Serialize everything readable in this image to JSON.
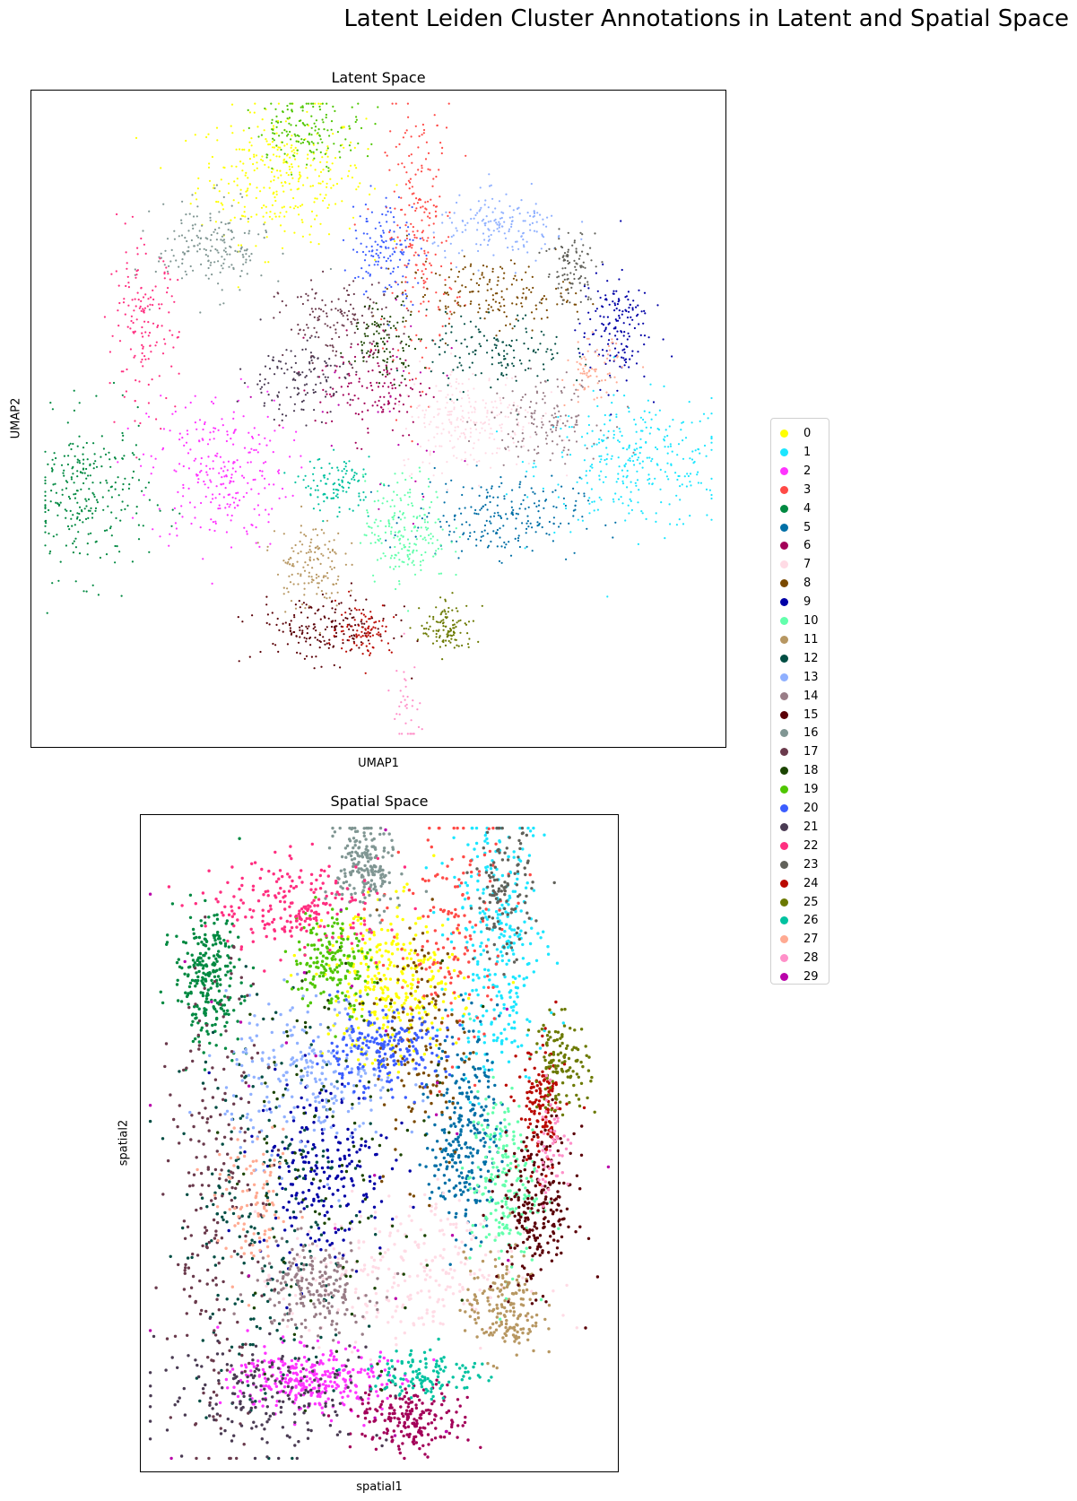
{
  "suptitle": "Latent Leiden Cluster Annotations in Latent and Spatial Space",
  "legend": {
    "items": [
      {
        "label": "0",
        "color": "#ffff00"
      },
      {
        "label": "1",
        "color": "#1ce6ff"
      },
      {
        "label": "2",
        "color": "#ff34ff"
      },
      {
        "label": "3",
        "color": "#ff4a46"
      },
      {
        "label": "4",
        "color": "#008941"
      },
      {
        "label": "5",
        "color": "#006fa6"
      },
      {
        "label": "6",
        "color": "#a30059"
      },
      {
        "label": "7",
        "color": "#ffdbe5"
      },
      {
        "label": "8",
        "color": "#7a4900"
      },
      {
        "label": "9",
        "color": "#0000a6"
      },
      {
        "label": "10",
        "color": "#63ffac"
      },
      {
        "label": "11",
        "color": "#b79762"
      },
      {
        "label": "12",
        "color": "#004d43"
      },
      {
        "label": "13",
        "color": "#8fb0ff"
      },
      {
        "label": "14",
        "color": "#997d87"
      },
      {
        "label": "15",
        "color": "#5a0007"
      },
      {
        "label": "16",
        "color": "#809693"
      },
      {
        "label": "17",
        "color": "#6a3a4c"
      },
      {
        "label": "18",
        "color": "#1b4400"
      },
      {
        "label": "19",
        "color": "#4fc601"
      },
      {
        "label": "20",
        "color": "#3b5dff"
      },
      {
        "label": "21",
        "color": "#4a3b53"
      },
      {
        "label": "22",
        "color": "#ff2f80"
      },
      {
        "label": "23",
        "color": "#61615a"
      },
      {
        "label": "24",
        "color": "#ba0900"
      },
      {
        "label": "25",
        "color": "#6b7900"
      },
      {
        "label": "26",
        "color": "#00c2a0"
      },
      {
        "label": "27",
        "color": "#ffaa92"
      },
      {
        "label": "28",
        "color": "#ff90c9"
      },
      {
        "label": "29",
        "color": "#b903aa"
      }
    ]
  },
  "chart_data": [
    {
      "type": "scatter",
      "title": "Latent Space",
      "xlabel": "UMAP1",
      "ylabel": "UMAP2",
      "ticks": "none",
      "legend": "right",
      "colored_by": "cluster",
      "cluster_centers": [
        {
          "cluster": "0",
          "x": 0.36,
          "y": 0.87,
          "sx": 0.06,
          "sy": 0.05,
          "n": 320
        },
        {
          "cluster": "1",
          "x": 0.87,
          "y": 0.43,
          "sx": 0.07,
          "sy": 0.05,
          "n": 300
        },
        {
          "cluster": "2",
          "x": 0.27,
          "y": 0.42,
          "sx": 0.05,
          "sy": 0.06,
          "n": 260
        },
        {
          "cluster": "3",
          "x": 0.56,
          "y": 0.78,
          "sx": 0.025,
          "sy": 0.1,
          "n": 220
        },
        {
          "cluster": "4",
          "x": 0.08,
          "y": 0.38,
          "sx": 0.045,
          "sy": 0.06,
          "n": 260
        },
        {
          "cluster": "5",
          "x": 0.67,
          "y": 0.35,
          "sx": 0.06,
          "sy": 0.03,
          "n": 220
        },
        {
          "cluster": "6",
          "x": 0.49,
          "y": 0.55,
          "sx": 0.04,
          "sy": 0.04,
          "n": 140
        },
        {
          "cluster": "7",
          "x": 0.63,
          "y": 0.5,
          "sx": 0.05,
          "sy": 0.04,
          "n": 240
        },
        {
          "cluster": "8",
          "x": 0.66,
          "y": 0.69,
          "sx": 0.06,
          "sy": 0.025,
          "n": 170
        },
        {
          "cluster": "9",
          "x": 0.84,
          "y": 0.64,
          "sx": 0.025,
          "sy": 0.045,
          "n": 160
        },
        {
          "cluster": "10",
          "x": 0.54,
          "y": 0.33,
          "sx": 0.03,
          "sy": 0.04,
          "n": 200
        },
        {
          "cluster": "11",
          "x": 0.4,
          "y": 0.28,
          "sx": 0.025,
          "sy": 0.035,
          "n": 140
        },
        {
          "cluster": "12",
          "x": 0.67,
          "y": 0.6,
          "sx": 0.05,
          "sy": 0.03,
          "n": 140
        },
        {
          "cluster": "13",
          "x": 0.68,
          "y": 0.79,
          "sx": 0.05,
          "sy": 0.025,
          "n": 160
        },
        {
          "cluster": "14",
          "x": 0.74,
          "y": 0.5,
          "sx": 0.04,
          "sy": 0.03,
          "n": 150
        },
        {
          "cluster": "15",
          "x": 0.42,
          "y": 0.18,
          "sx": 0.05,
          "sy": 0.025,
          "n": 180
        },
        {
          "cluster": "16",
          "x": 0.26,
          "y": 0.76,
          "sx": 0.04,
          "sy": 0.035,
          "n": 180
        },
        {
          "cluster": "17",
          "x": 0.44,
          "y": 0.65,
          "sx": 0.04,
          "sy": 0.03,
          "n": 140
        },
        {
          "cluster": "18",
          "x": 0.51,
          "y": 0.62,
          "sx": 0.025,
          "sy": 0.03,
          "n": 110
        },
        {
          "cluster": "19",
          "x": 0.4,
          "y": 0.94,
          "sx": 0.04,
          "sy": 0.025,
          "n": 150
        },
        {
          "cluster": "20",
          "x": 0.51,
          "y": 0.76,
          "sx": 0.025,
          "sy": 0.04,
          "n": 140
        },
        {
          "cluster": "21",
          "x": 0.38,
          "y": 0.56,
          "sx": 0.04,
          "sy": 0.03,
          "n": 130
        },
        {
          "cluster": "22",
          "x": 0.16,
          "y": 0.64,
          "sx": 0.025,
          "sy": 0.06,
          "n": 150
        },
        {
          "cluster": "23",
          "x": 0.78,
          "y": 0.73,
          "sx": 0.02,
          "sy": 0.03,
          "n": 100
        },
        {
          "cluster": "24",
          "x": 0.48,
          "y": 0.18,
          "sx": 0.02,
          "sy": 0.02,
          "n": 90
        },
        {
          "cluster": "25",
          "x": 0.6,
          "y": 0.18,
          "sx": 0.02,
          "sy": 0.02,
          "n": 110
        },
        {
          "cluster": "26",
          "x": 0.44,
          "y": 0.4,
          "sx": 0.025,
          "sy": 0.02,
          "n": 110
        },
        {
          "cluster": "27",
          "x": 0.81,
          "y": 0.57,
          "sx": 0.02,
          "sy": 0.025,
          "n": 70
        },
        {
          "cluster": "28",
          "x": 0.54,
          "y": 0.06,
          "sx": 0.01,
          "sy": 0.04,
          "n": 35
        },
        {
          "cluster": "29",
          "x": 0.52,
          "y": 0.5,
          "sx": 0.08,
          "sy": 0.08,
          "n": 25
        }
      ]
    },
    {
      "type": "scatter",
      "title": "Spatial Space",
      "xlabel": "spatial1",
      "ylabel": "spatial2",
      "ticks": "none",
      "colored_by": "cluster",
      "cluster_centers": [
        {
          "cluster": "0",
          "x": 0.53,
          "y": 0.74,
          "sx": 0.07,
          "sy": 0.06,
          "n": 330
        },
        {
          "cluster": "1",
          "x": 0.75,
          "y": 0.8,
          "sx": 0.05,
          "sy": 0.1,
          "n": 300
        },
        {
          "cluster": "2",
          "x": 0.35,
          "y": 0.14,
          "sx": 0.08,
          "sy": 0.025,
          "n": 300
        },
        {
          "cluster": "3",
          "x": 0.65,
          "y": 0.82,
          "sx": 0.06,
          "sy": 0.1,
          "n": 150
        },
        {
          "cluster": "4",
          "x": 0.14,
          "y": 0.75,
          "sx": 0.035,
          "sy": 0.05,
          "n": 260
        },
        {
          "cluster": "5",
          "x": 0.68,
          "y": 0.52,
          "sx": 0.035,
          "sy": 0.08,
          "n": 280
        },
        {
          "cluster": "6",
          "x": 0.57,
          "y": 0.08,
          "sx": 0.06,
          "sy": 0.025,
          "n": 200
        },
        {
          "cluster": "7",
          "x": 0.55,
          "y": 0.3,
          "sx": 0.12,
          "sy": 0.06,
          "n": 260
        },
        {
          "cluster": "8",
          "x": 0.59,
          "y": 0.66,
          "sx": 0.05,
          "sy": 0.1,
          "n": 140
        },
        {
          "cluster": "9",
          "x": 0.38,
          "y": 0.46,
          "sx": 0.07,
          "sy": 0.07,
          "n": 220
        },
        {
          "cluster": "10",
          "x": 0.76,
          "y": 0.44,
          "sx": 0.035,
          "sy": 0.07,
          "n": 200
        },
        {
          "cluster": "11",
          "x": 0.76,
          "y": 0.25,
          "sx": 0.04,
          "sy": 0.04,
          "n": 180
        },
        {
          "cluster": "12",
          "x": 0.26,
          "y": 0.4,
          "sx": 0.09,
          "sy": 0.15,
          "n": 220
        },
        {
          "cluster": "13",
          "x": 0.36,
          "y": 0.6,
          "sx": 0.09,
          "sy": 0.06,
          "n": 240
        },
        {
          "cluster": "14",
          "x": 0.36,
          "y": 0.28,
          "sx": 0.06,
          "sy": 0.035,
          "n": 200
        },
        {
          "cluster": "15",
          "x": 0.83,
          "y": 0.4,
          "sx": 0.04,
          "sy": 0.06,
          "n": 240
        },
        {
          "cluster": "16",
          "x": 0.47,
          "y": 0.92,
          "sx": 0.03,
          "sy": 0.04,
          "n": 200
        },
        {
          "cluster": "17",
          "x": 0.16,
          "y": 0.4,
          "sx": 0.05,
          "sy": 0.18,
          "n": 220
        },
        {
          "cluster": "18",
          "x": 0.42,
          "y": 0.5,
          "sx": 0.12,
          "sy": 0.15,
          "n": 120
        },
        {
          "cluster": "19",
          "x": 0.4,
          "y": 0.78,
          "sx": 0.04,
          "sy": 0.04,
          "n": 180
        },
        {
          "cluster": "20",
          "x": 0.5,
          "y": 0.64,
          "sx": 0.07,
          "sy": 0.03,
          "n": 220
        },
        {
          "cluster": "21",
          "x": 0.28,
          "y": 0.12,
          "sx": 0.12,
          "sy": 0.04,
          "n": 200
        },
        {
          "cluster": "22",
          "x": 0.33,
          "y": 0.86,
          "sx": 0.09,
          "sy": 0.035,
          "n": 220
        },
        {
          "cluster": "23",
          "x": 0.76,
          "y": 0.88,
          "sx": 0.03,
          "sy": 0.05,
          "n": 120
        },
        {
          "cluster": "24",
          "x": 0.84,
          "y": 0.55,
          "sx": 0.025,
          "sy": 0.05,
          "n": 140
        },
        {
          "cluster": "25",
          "x": 0.88,
          "y": 0.62,
          "sx": 0.03,
          "sy": 0.035,
          "n": 120
        },
        {
          "cluster": "26",
          "x": 0.6,
          "y": 0.15,
          "sx": 0.06,
          "sy": 0.02,
          "n": 120
        },
        {
          "cluster": "27",
          "x": 0.24,
          "y": 0.4,
          "sx": 0.04,
          "sy": 0.05,
          "n": 90
        },
        {
          "cluster": "28",
          "x": 0.86,
          "y": 0.5,
          "sx": 0.02,
          "sy": 0.04,
          "n": 50
        },
        {
          "cluster": "29",
          "x": 0.5,
          "y": 0.5,
          "sx": 0.25,
          "sy": 0.3,
          "n": 30
        }
      ]
    }
  ]
}
